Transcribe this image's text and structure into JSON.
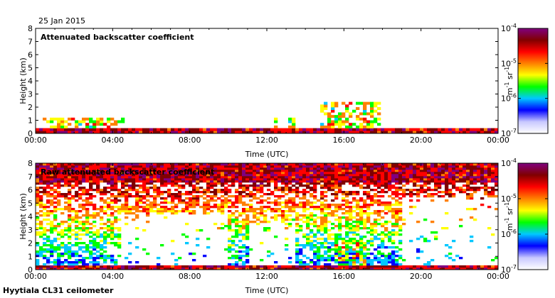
{
  "date_label": "25 Jan 2015",
  "footer_label": "Hyytiala CL31 ceilometer",
  "colorbar": {
    "ticks": [
      "10^-4",
      "10^-5",
      "10^-6",
      "10^-7"
    ],
    "tick_base": "10",
    "tick_exponents": [
      "-4",
      "-5",
      "-6",
      "-7"
    ],
    "unit_parts": [
      "m",
      "-1",
      " sr",
      "-1"
    ],
    "colors": [
      "#ffffff",
      "#c8c8ff",
      "#0000ff",
      "#00c8ff",
      "#00ff00",
      "#ffff00",
      "#ff8000",
      "#ff0000",
      "#800000",
      "#800080"
    ]
  },
  "chart_data": [
    {
      "type": "heatmap",
      "title": "Attenuated backscatter coefficient",
      "xlabel": "Time (UTC)",
      "ylabel": "Height (km)",
      "x_ticks": [
        "00:00",
        "04:00",
        "08:00",
        "12:00",
        "16:00",
        "20:00",
        "00:00"
      ],
      "y_ticks": [
        "0",
        "1",
        "2",
        "3",
        "4",
        "5",
        "6",
        "7",
        "8"
      ],
      "xlim_hours": [
        0,
        24
      ],
      "ylim_km": [
        0,
        8
      ],
      "color_scale": "log",
      "clim": [
        1e-07,
        0.0001
      ],
      "features": [
        {
          "hours": [
            0,
            24
          ],
          "height_km": [
            0,
            0.3
          ],
          "level": "high"
        },
        {
          "hours": [
            0.3,
            4.6
          ],
          "height_km": [
            0,
            1.2
          ],
          "level": "medium"
        },
        {
          "hours": [
            12.3,
            12.6
          ],
          "height_km": [
            0,
            1.4
          ],
          "level": "medium"
        },
        {
          "hours": [
            13.2,
            13.5
          ],
          "height_km": [
            0,
            1.1
          ],
          "level": "medium"
        },
        {
          "hours": [
            14.8,
            17.9
          ],
          "height_km": [
            0,
            2.3
          ],
          "level": "medium"
        }
      ]
    },
    {
      "type": "heatmap",
      "title": "Raw attenuated backscatter coefficient",
      "xlabel": "Time (UTC)",
      "ylabel": "Height (km)",
      "x_ticks": [
        "00:00",
        "04:00",
        "08:00",
        "12:00",
        "16:00",
        "20:00",
        "00:00"
      ],
      "y_ticks": [
        "0",
        "1",
        "2",
        "3",
        "4",
        "5",
        "6",
        "7",
        "8"
      ],
      "xlim_hours": [
        0,
        24
      ],
      "ylim_km": [
        0,
        8
      ],
      "color_scale": "log",
      "clim": [
        1e-07,
        0.0001
      ],
      "features": [
        {
          "hours": [
            0,
            24
          ],
          "height_km": [
            0,
            0.3
          ],
          "level": "high"
        },
        {
          "hours": [
            0,
            24
          ],
          "height_km": [
            6.5,
            8
          ],
          "level": "high"
        },
        {
          "hours": [
            0,
            24
          ],
          "height_km": [
            0.3,
            6.5
          ],
          "level": "noise"
        },
        {
          "hours": [
            15.6,
            17.2
          ],
          "height_km": [
            0.2,
            2.3
          ],
          "level": "medium"
        }
      ]
    }
  ]
}
